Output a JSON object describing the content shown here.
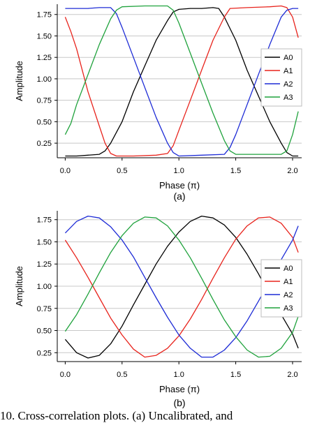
{
  "chart_data": [
    {
      "type": "line",
      "sublabel": "(a)",
      "xlabel": "Phase (π)",
      "ylabel": "Amplitude",
      "xlim": [
        -0.07,
        2.08
      ],
      "ylim": [
        0.08,
        1.87
      ],
      "xticks": [
        0.0,
        0.5,
        1.0,
        1.5,
        2.0
      ],
      "xtick_labels": [
        "0.0",
        "0.5",
        "1.0",
        "1.5",
        "2.0"
      ],
      "yticks": [
        0.25,
        0.5,
        0.75,
        1.0,
        1.25,
        1.5,
        1.75
      ],
      "ytick_labels": [
        "0.25",
        "0.50",
        "0.75",
        "1.00",
        "1.25",
        "1.50",
        "1.75"
      ],
      "grid": "horizontal",
      "legend": "right",
      "series": [
        {
          "name": "A0",
          "color": "#000000",
          "points": [
            [
              0,
              0.1
            ],
            [
              0.1,
              0.1
            ],
            [
              0.2,
              0.11
            ],
            [
              0.3,
              0.12
            ],
            [
              0.35,
              0.16
            ],
            [
              0.4,
              0.25
            ],
            [
              0.5,
              0.5
            ],
            [
              0.6,
              0.85
            ],
            [
              0.7,
              1.15
            ],
            [
              0.8,
              1.45
            ],
            [
              0.9,
              1.68
            ],
            [
              0.95,
              1.78
            ],
            [
              1.0,
              1.81
            ],
            [
              1.1,
              1.82
            ],
            [
              1.2,
              1.82
            ],
            [
              1.3,
              1.83
            ],
            [
              1.35,
              1.82
            ],
            [
              1.4,
              1.72
            ],
            [
              1.5,
              1.45
            ],
            [
              1.6,
              1.1
            ],
            [
              1.7,
              0.8
            ],
            [
              1.8,
              0.5
            ],
            [
              1.9,
              0.25
            ],
            [
              1.95,
              0.14
            ],
            [
              2.0,
              0.1
            ],
            [
              2.05,
              0.1
            ]
          ]
        },
        {
          "name": "A1",
          "color": "#e8231c",
          "points": [
            [
              0,
              1.72
            ],
            [
              0.05,
              1.55
            ],
            [
              0.1,
              1.35
            ],
            [
              0.15,
              1.1
            ],
            [
              0.2,
              0.85
            ],
            [
              0.3,
              0.45
            ],
            [
              0.35,
              0.25
            ],
            [
              0.4,
              0.13
            ],
            [
              0.45,
              0.1
            ],
            [
              0.6,
              0.1
            ],
            [
              0.8,
              0.11
            ],
            [
              0.9,
              0.13
            ],
            [
              0.95,
              0.22
            ],
            [
              1.0,
              0.4
            ],
            [
              1.1,
              0.75
            ],
            [
              1.2,
              1.1
            ],
            [
              1.3,
              1.45
            ],
            [
              1.4,
              1.72
            ],
            [
              1.45,
              1.82
            ],
            [
              1.6,
              1.83
            ],
            [
              1.8,
              1.84
            ],
            [
              1.9,
              1.85
            ],
            [
              1.95,
              1.83
            ],
            [
              2.0,
              1.72
            ],
            [
              2.05,
              1.48
            ]
          ]
        },
        {
          "name": "A2",
          "color": "#1d2bd6",
          "points": [
            [
              0,
              1.82
            ],
            [
              0.2,
              1.82
            ],
            [
              0.3,
              1.83
            ],
            [
              0.4,
              1.83
            ],
            [
              0.45,
              1.76
            ],
            [
              0.5,
              1.6
            ],
            [
              0.6,
              1.25
            ],
            [
              0.7,
              0.9
            ],
            [
              0.8,
              0.55
            ],
            [
              0.9,
              0.25
            ],
            [
              0.95,
              0.14
            ],
            [
              1.0,
              0.1
            ],
            [
              1.2,
              0.11
            ],
            [
              1.4,
              0.12
            ],
            [
              1.45,
              0.2
            ],
            [
              1.5,
              0.35
            ],
            [
              1.6,
              0.7
            ],
            [
              1.7,
              1.05
            ],
            [
              1.8,
              1.4
            ],
            [
              1.9,
              1.72
            ],
            [
              1.95,
              1.8
            ],
            [
              2.0,
              1.82
            ],
            [
              2.05,
              1.82
            ]
          ]
        },
        {
          "name": "A3",
          "color": "#1fa23c",
          "points": [
            [
              0,
              0.35
            ],
            [
              0.05,
              0.48
            ],
            [
              0.1,
              0.7
            ],
            [
              0.2,
              1.05
            ],
            [
              0.3,
              1.4
            ],
            [
              0.4,
              1.7
            ],
            [
              0.45,
              1.8
            ],
            [
              0.5,
              1.84
            ],
            [
              0.7,
              1.85
            ],
            [
              0.9,
              1.85
            ],
            [
              0.95,
              1.8
            ],
            [
              1.0,
              1.65
            ],
            [
              1.1,
              1.3
            ],
            [
              1.2,
              0.95
            ],
            [
              1.3,
              0.6
            ],
            [
              1.4,
              0.28
            ],
            [
              1.45,
              0.16
            ],
            [
              1.5,
              0.12
            ],
            [
              1.7,
              0.12
            ],
            [
              1.9,
              0.12
            ],
            [
              1.95,
              0.16
            ],
            [
              2.0,
              0.35
            ],
            [
              2.05,
              0.62
            ]
          ]
        }
      ]
    },
    {
      "type": "line",
      "sublabel": "(b)",
      "xlabel": "Phase (π)",
      "ylabel": "Amplitude",
      "xlim": [
        -0.07,
        2.08
      ],
      "ylim": [
        0.15,
        1.85
      ],
      "xticks": [
        0.0,
        0.5,
        1.0,
        1.5,
        2.0
      ],
      "xtick_labels": [
        "0.0",
        "0.5",
        "1.0",
        "1.5",
        "2.0"
      ],
      "yticks": [
        0.25,
        0.5,
        0.75,
        1.0,
        1.25,
        1.5,
        1.75
      ],
      "ytick_labels": [
        "0.25",
        "0.50",
        "0.75",
        "1.00",
        "1.25",
        "1.50",
        "1.75"
      ],
      "grid": "horizontal",
      "legend": "right",
      "series": [
        {
          "name": "A0",
          "color": "#000000",
          "points": [
            [
              0,
              0.4
            ],
            [
              0.1,
              0.25
            ],
            [
              0.2,
              0.19
            ],
            [
              0.3,
              0.22
            ],
            [
              0.4,
              0.35
            ],
            [
              0.5,
              0.55
            ],
            [
              0.6,
              0.79
            ],
            [
              0.7,
              1.02
            ],
            [
              0.8,
              1.25
            ],
            [
              0.9,
              1.45
            ],
            [
              1.0,
              1.61
            ],
            [
              1.1,
              1.73
            ],
            [
              1.2,
              1.79
            ],
            [
              1.3,
              1.77
            ],
            [
              1.4,
              1.69
            ],
            [
              1.5,
              1.55
            ],
            [
              1.6,
              1.36
            ],
            [
              1.7,
              1.14
            ],
            [
              1.8,
              0.9
            ],
            [
              1.9,
              0.68
            ],
            [
              2.0,
              0.46
            ],
            [
              2.05,
              0.3
            ]
          ]
        },
        {
          "name": "A1",
          "color": "#e8231c",
          "points": [
            [
              0,
              1.52
            ],
            [
              0.1,
              1.32
            ],
            [
              0.2,
              1.1
            ],
            [
              0.3,
              0.87
            ],
            [
              0.4,
              0.64
            ],
            [
              0.5,
              0.45
            ],
            [
              0.6,
              0.29
            ],
            [
              0.7,
              0.2
            ],
            [
              0.8,
              0.22
            ],
            [
              0.9,
              0.3
            ],
            [
              1.0,
              0.44
            ],
            [
              1.1,
              0.63
            ],
            [
              1.2,
              0.85
            ],
            [
              1.3,
              1.09
            ],
            [
              1.4,
              1.32
            ],
            [
              1.5,
              1.53
            ],
            [
              1.6,
              1.68
            ],
            [
              1.7,
              1.77
            ],
            [
              1.8,
              1.78
            ],
            [
              1.9,
              1.71
            ],
            [
              2.0,
              1.55
            ],
            [
              2.05,
              1.38
            ]
          ]
        },
        {
          "name": "A2",
          "color": "#1d2bd6",
          "points": [
            [
              0,
              1.6
            ],
            [
              0.1,
              1.73
            ],
            [
              0.2,
              1.79
            ],
            [
              0.3,
              1.77
            ],
            [
              0.4,
              1.67
            ],
            [
              0.5,
              1.52
            ],
            [
              0.6,
              1.33
            ],
            [
              0.7,
              1.1
            ],
            [
              0.8,
              0.87
            ],
            [
              0.9,
              0.65
            ],
            [
              1.0,
              0.45
            ],
            [
              1.1,
              0.3
            ],
            [
              1.2,
              0.2
            ],
            [
              1.3,
              0.2
            ],
            [
              1.4,
              0.28
            ],
            [
              1.5,
              0.42
            ],
            [
              1.6,
              0.61
            ],
            [
              1.7,
              0.83
            ],
            [
              1.8,
              1.06
            ],
            [
              1.9,
              1.3
            ],
            [
              2.0,
              1.52
            ],
            [
              2.05,
              1.68
            ]
          ]
        },
        {
          "name": "A3",
          "color": "#1fa23c",
          "points": [
            [
              0,
              0.49
            ],
            [
              0.1,
              0.68
            ],
            [
              0.2,
              0.91
            ],
            [
              0.3,
              1.15
            ],
            [
              0.4,
              1.38
            ],
            [
              0.5,
              1.57
            ],
            [
              0.6,
              1.71
            ],
            [
              0.7,
              1.78
            ],
            [
              0.8,
              1.77
            ],
            [
              0.9,
              1.68
            ],
            [
              1.0,
              1.52
            ],
            [
              1.1,
              1.32
            ],
            [
              1.2,
              1.09
            ],
            [
              1.3,
              0.85
            ],
            [
              1.4,
              0.62
            ],
            [
              1.5,
              0.43
            ],
            [
              1.6,
              0.28
            ],
            [
              1.7,
              0.2
            ],
            [
              1.8,
              0.21
            ],
            [
              1.9,
              0.3
            ],
            [
              2.0,
              0.48
            ],
            [
              2.05,
              0.66
            ]
          ]
        }
      ]
    }
  ],
  "caption": "10.  Cross-correlation plots. (a) Uncalibrated, and"
}
